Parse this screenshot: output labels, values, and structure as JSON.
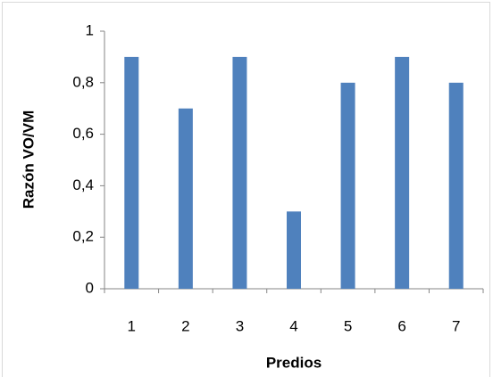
{
  "chart_data": {
    "type": "bar",
    "x_label": "Predios",
    "y_label": "Razón VO/VM",
    "categories": [
      "1",
      "2",
      "3",
      "4",
      "5",
      "6",
      "7"
    ],
    "values": [
      0.9,
      0.7,
      0.9,
      0.3,
      0.8,
      0.9,
      0.8
    ],
    "color": "#4f81bd",
    "ylim": [
      0,
      1
    ],
    "yticks": [
      0,
      {
        "value": 0.2,
        "label": "0,2"
      },
      {
        "value": 0.4,
        "label": "0,4"
      },
      {
        "value": 0.6,
        "label": "0,6"
      },
      {
        "value": 0.8,
        "label": "0,8"
      },
      1
    ],
    "grid": false
  }
}
